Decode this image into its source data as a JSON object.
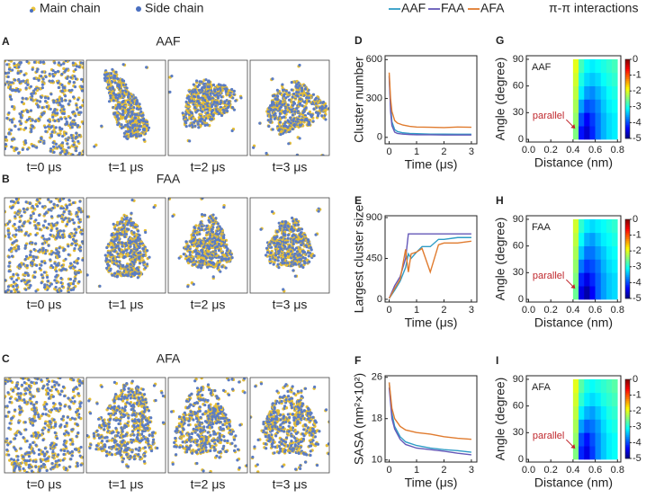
{
  "legend": {
    "main_chain": "Main chain",
    "side_chain": "Side chain",
    "pi_pi": "π-π interactions"
  },
  "snapshots": [
    {
      "panel": "A",
      "title": "AAF",
      "times": [
        "t=0 μs",
        "t=1 μs",
        "t=2 μs",
        "t=3 μs"
      ]
    },
    {
      "panel": "B",
      "title": "FAA",
      "times": [
        "t=0 μs",
        "t=1 μs",
        "t=2 μs",
        "t=3 μs"
      ]
    },
    {
      "panel": "C",
      "title": "AFA",
      "times": [
        "t=0 μs",
        "t=1 μs",
        "t=2 μs",
        "t=3 μs"
      ]
    }
  ],
  "chart_data": [
    {
      "type": "line",
      "panel": "D",
      "xlabel": "Time (μs)",
      "ylabel": "Cluster number",
      "xlim": [
        -0.15,
        3.2
      ],
      "xticks": [
        0,
        1,
        2,
        3
      ],
      "ylim": [
        -50,
        630
      ],
      "yticks": [
        0,
        300,
        600
      ],
      "x": [
        0,
        0.05,
        0.1,
        0.2,
        0.3,
        0.5,
        0.75,
        1,
        1.5,
        2,
        2.5,
        3
      ],
      "series": [
        {
          "name": "AAF",
          "color": "#2f9cc6",
          "values": [
            480,
            250,
            120,
            60,
            45,
            35,
            30,
            28,
            25,
            25,
            24,
            24
          ]
        },
        {
          "name": "FAA",
          "color": "#6458b8",
          "values": [
            470,
            200,
            90,
            40,
            30,
            25,
            22,
            20,
            20,
            18,
            18,
            18
          ]
        },
        {
          "name": "AFA",
          "color": "#e07b2e",
          "values": [
            500,
            300,
            200,
            130,
            110,
            95,
            85,
            80,
            78,
            75,
            80,
            78
          ]
        }
      ]
    },
    {
      "type": "line",
      "panel": "E",
      "xlabel": "Time (μs)",
      "ylabel": "Largest cluster size",
      "xlim": [
        -0.15,
        3.2
      ],
      "xticks": [
        0,
        1,
        2,
        3
      ],
      "ylim": [
        -30,
        920
      ],
      "yticks": [
        0,
        450,
        900
      ],
      "x": [
        0,
        0.2,
        0.4,
        0.6,
        0.7,
        0.8,
        1,
        1.2,
        1.5,
        1.8,
        2,
        2.5,
        3
      ],
      "series": [
        {
          "name": "AAF",
          "color": "#2f9cc6",
          "values": [
            10,
            100,
            200,
            350,
            500,
            450,
            520,
            580,
            580,
            660,
            660,
            680,
            680
          ]
        },
        {
          "name": "FAA",
          "color": "#6458b8",
          "values": [
            10,
            150,
            250,
            450,
            720,
            720,
            720,
            720,
            720,
            720,
            720,
            720,
            720
          ]
        },
        {
          "name": "AFA",
          "color": "#e07b2e",
          "values": [
            10,
            120,
            220,
            550,
            300,
            500,
            520,
            560,
            300,
            600,
            620,
            620,
            640
          ]
        }
      ]
    },
    {
      "type": "line",
      "panel": "F",
      "xlabel": "Time (μs)",
      "ylabel": "SASA (nm²×10²)",
      "xlim": [
        -0.15,
        3.2
      ],
      "xticks": [
        0,
        1,
        2,
        3
      ],
      "ylim": [
        9.6,
        26.3
      ],
      "yticks": [
        10,
        18,
        26
      ],
      "x": [
        0,
        0.1,
        0.2,
        0.4,
        0.6,
        1,
        1.5,
        2,
        2.5,
        3
      ],
      "series": [
        {
          "name": "AAF",
          "color": "#2f9cc6",
          "values": [
            25,
            19,
            16.5,
            14.5,
            13.5,
            12.8,
            12.3,
            12,
            11.8,
            11.5
          ]
        },
        {
          "name": "FAA",
          "color": "#6458b8",
          "values": [
            24,
            18,
            16,
            14,
            13,
            12.3,
            12,
            11.7,
            11.3,
            11
          ]
        },
        {
          "name": "AFA",
          "color": "#e07b2e",
          "values": [
            25,
            20,
            18,
            16.5,
            15.8,
            15.3,
            15,
            14.5,
            14.2,
            14
          ]
        }
      ]
    },
    {
      "type": "heatmap",
      "panel": "G",
      "label": "AAF",
      "annotation": "parallel",
      "xlabel": "Distance (nm)",
      "ylabel": "Angle (degree)",
      "xlim": [
        -0.02,
        0.83
      ],
      "xticks": [
        {
          "value": 0,
          "label": "0.0"
        },
        0.2,
        0.4,
        0.6,
        0.8
      ],
      "ylim": [
        -3,
        94
      ],
      "yticks": [
        0,
        30,
        60,
        90
      ],
      "clim": [
        -5,
        0
      ],
      "cticks": [
        0,
        -1,
        -2,
        -3,
        -4,
        -5
      ],
      "x": [
        0.425,
        0.475,
        0.525,
        0.575,
        0.625,
        0.675,
        0.725,
        0.775
      ],
      "y": [
        7.5,
        22.5,
        37.5,
        52.5,
        67.5,
        82.5
      ],
      "z": [
        [
          -2.5,
          -4.3,
          -4.6,
          -4.2,
          -3.8,
          -3.5,
          -3.3,
          -3.2
        ],
        [
          -2.4,
          -4.0,
          -4.4,
          -4.1,
          -3.8,
          -3.5,
          -3.3,
          -3.2
        ],
        [
          -2.3,
          -3.6,
          -4.0,
          -3.9,
          -3.7,
          -3.4,
          -3.2,
          -3.1
        ],
        [
          -2.2,
          -3.2,
          -3.6,
          -3.7,
          -3.5,
          -3.3,
          -3.1,
          -3.0
        ],
        [
          -2.1,
          -3.0,
          -3.3,
          -3.4,
          -3.3,
          -3.1,
          -3.0,
          -2.9
        ],
        [
          -2.0,
          -2.8,
          -3.1,
          -3.2,
          -3.1,
          -3.0,
          -2.9,
          -2.8
        ]
      ]
    },
    {
      "type": "heatmap",
      "panel": "H",
      "label": "FAA",
      "annotation": "parallel",
      "xlabel": "Distance (nm)",
      "ylabel": "Angle (degree)",
      "xlim": [
        -0.02,
        0.83
      ],
      "xticks": [
        {
          "value": 0,
          "label": "0.0"
        },
        0.2,
        0.4,
        0.6,
        0.8
      ],
      "ylim": [
        -3,
        94
      ],
      "yticks": [
        0,
        30,
        60,
        90
      ],
      "clim": [
        -5,
        0
      ],
      "cticks": [
        0,
        -1,
        -2,
        -3,
        -4,
        -5
      ],
      "x": [
        0.425,
        0.475,
        0.525,
        0.575,
        0.625,
        0.675,
        0.725,
        0.775
      ],
      "y": [
        7.5,
        22.5,
        37.5,
        52.5,
        67.5,
        82.5
      ],
      "z": [
        [
          -2.6,
          -4.5,
          -4.8,
          -4.4,
          -3.9,
          -3.6,
          -3.4,
          -3.3
        ],
        [
          -2.5,
          -4.2,
          -4.5,
          -4.2,
          -3.9,
          -3.6,
          -3.4,
          -3.3
        ],
        [
          -2.4,
          -3.8,
          -4.1,
          -4.0,
          -3.8,
          -3.5,
          -3.3,
          -3.2
        ],
        [
          -2.3,
          -3.4,
          -3.8,
          -3.8,
          -3.6,
          -3.4,
          -3.2,
          -3.1
        ],
        [
          -2.2,
          -3.1,
          -3.5,
          -3.6,
          -3.4,
          -3.2,
          -3.1,
          -3.0
        ],
        [
          -2.1,
          -2.9,
          -3.2,
          -3.3,
          -3.2,
          -3.1,
          -3.0,
          -2.9
        ]
      ]
    },
    {
      "type": "heatmap",
      "panel": "I",
      "label": "AFA",
      "annotation": "parallel",
      "xlabel": "Distance (nm)",
      "ylabel": "Angle (degree)",
      "xlim": [
        -0.02,
        0.83
      ],
      "xticks": [
        {
          "value": 0,
          "label": "0.0"
        },
        0.2,
        0.4,
        0.6,
        0.8
      ],
      "ylim": [
        -3,
        94
      ],
      "yticks": [
        0,
        30,
        60,
        90
      ],
      "clim": [
        -5,
        0
      ],
      "cticks": [
        0,
        -1,
        -2,
        -3,
        -4,
        -5
      ],
      "x": [
        0.425,
        0.475,
        0.525,
        0.575,
        0.625,
        0.675,
        0.725,
        0.775
      ],
      "y": [
        7.5,
        22.5,
        37.5,
        52.5,
        67.5,
        82.5
      ],
      "z": [
        [
          -2.5,
          -4.2,
          -4.5,
          -4.1,
          -3.7,
          -3.4,
          -3.2,
          -3.1
        ],
        [
          -2.4,
          -4.0,
          -4.3,
          -4.0,
          -3.7,
          -3.4,
          -3.2,
          -3.1
        ],
        [
          -2.3,
          -3.6,
          -3.9,
          -3.8,
          -3.6,
          -3.3,
          -3.1,
          -3.0
        ],
        [
          -2.2,
          -3.2,
          -3.5,
          -3.6,
          -3.4,
          -3.2,
          -3.0,
          -2.9
        ],
        [
          -2.1,
          -2.9,
          -3.2,
          -3.3,
          -3.2,
          -3.0,
          -2.9,
          -2.8
        ],
        [
          -2.0,
          -2.7,
          -3.0,
          -3.1,
          -3.0,
          -2.9,
          -2.8,
          -2.7
        ]
      ]
    }
  ]
}
